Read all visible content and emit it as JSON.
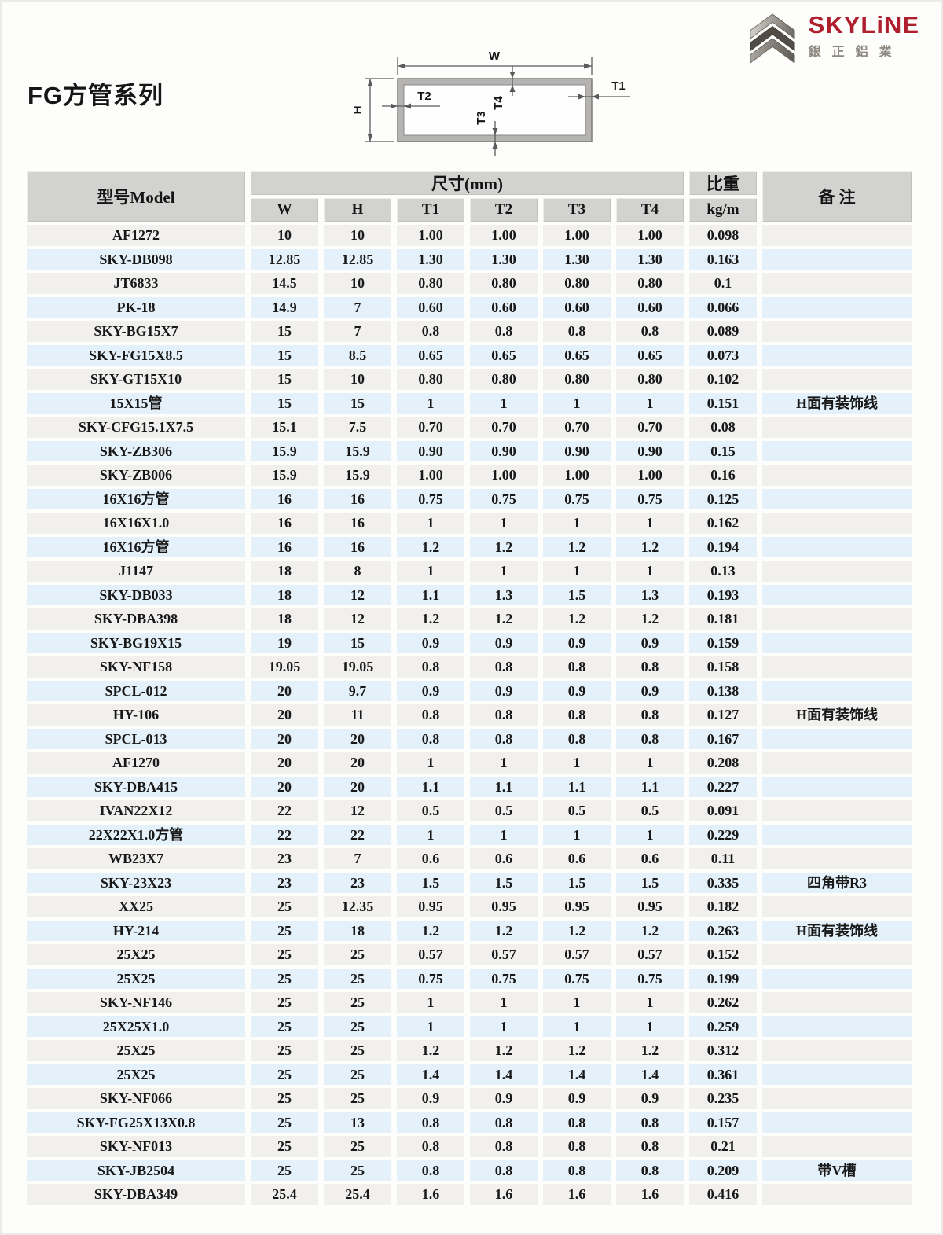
{
  "page": {
    "title": "FG方管系列"
  },
  "logo": {
    "brand": "SKYLiNE",
    "brand_cn": "銀正鋁業",
    "brand_color": "#b01f2e"
  },
  "colors": {
    "header_bg": "#d2d2d0",
    "row_odd_bg": "#f1f0ee",
    "row_even_bg": "#e4f1fa",
    "brand_red": "#b01f2e"
  },
  "diagram": {
    "w": "W",
    "h": "H",
    "t1": "T1",
    "t2": "T2",
    "t3": "T3",
    "t4": "T4"
  },
  "table": {
    "header": {
      "model": "型号Model",
      "size_group": "尺寸(mm)",
      "weight": "比重",
      "weight_unit": "kg/m",
      "note": "备 注",
      "dims": [
        "W",
        "H",
        "T1",
        "T2",
        "T3",
        "T4"
      ]
    },
    "columns": [
      "model",
      "w",
      "h",
      "t1",
      "t2",
      "t3",
      "t4",
      "kg-per-m",
      "note"
    ],
    "rows": [
      [
        "AF1272",
        "10",
        "10",
        "1.00",
        "1.00",
        "1.00",
        "1.00",
        "0.098",
        ""
      ],
      [
        "SKY-DB098",
        "12.85",
        "12.85",
        "1.30",
        "1.30",
        "1.30",
        "1.30",
        "0.163",
        ""
      ],
      [
        "JT6833",
        "14.5",
        "10",
        "0.80",
        "0.80",
        "0.80",
        "0.80",
        "0.1",
        ""
      ],
      [
        "PK-18",
        "14.9",
        "7",
        "0.60",
        "0.60",
        "0.60",
        "0.60",
        "0.066",
        ""
      ],
      [
        "SKY-BG15X7",
        "15",
        "7",
        "0.8",
        "0.8",
        "0.8",
        "0.8",
        "0.089",
        ""
      ],
      [
        "SKY-FG15X8.5",
        "15",
        "8.5",
        "0.65",
        "0.65",
        "0.65",
        "0.65",
        "0.073",
        ""
      ],
      [
        "SKY-GT15X10",
        "15",
        "10",
        "0.80",
        "0.80",
        "0.80",
        "0.80",
        "0.102",
        ""
      ],
      [
        "15X15管",
        "15",
        "15",
        "1",
        "1",
        "1",
        "1",
        "0.151",
        "H面有装饰线"
      ],
      [
        "SKY-CFG15.1X7.5",
        "15.1",
        "7.5",
        "0.70",
        "0.70",
        "0.70",
        "0.70",
        "0.08",
        ""
      ],
      [
        "SKY-ZB306",
        "15.9",
        "15.9",
        "0.90",
        "0.90",
        "0.90",
        "0.90",
        "0.15",
        ""
      ],
      [
        "SKY-ZB006",
        "15.9",
        "15.9",
        "1.00",
        "1.00",
        "1.00",
        "1.00",
        "0.16",
        ""
      ],
      [
        "16X16方管",
        "16",
        "16",
        "0.75",
        "0.75",
        "0.75",
        "0.75",
        "0.125",
        ""
      ],
      [
        "16X16X1.0",
        "16",
        "16",
        "1",
        "1",
        "1",
        "1",
        "0.162",
        ""
      ],
      [
        "16X16方管",
        "16",
        "16",
        "1.2",
        "1.2",
        "1.2",
        "1.2",
        "0.194",
        ""
      ],
      [
        "J1147",
        "18",
        "8",
        "1",
        "1",
        "1",
        "1",
        "0.13",
        ""
      ],
      [
        "SKY-DB033",
        "18",
        "12",
        "1.1",
        "1.3",
        "1.5",
        "1.3",
        "0.193",
        ""
      ],
      [
        "SKY-DBA398",
        "18",
        "12",
        "1.2",
        "1.2",
        "1.2",
        "1.2",
        "0.181",
        ""
      ],
      [
        "SKY-BG19X15",
        "19",
        "15",
        "0.9",
        "0.9",
        "0.9",
        "0.9",
        "0.159",
        ""
      ],
      [
        "SKY-NF158",
        "19.05",
        "19.05",
        "0.8",
        "0.8",
        "0.8",
        "0.8",
        "0.158",
        ""
      ],
      [
        "SPCL-012",
        "20",
        "9.7",
        "0.9",
        "0.9",
        "0.9",
        "0.9",
        "0.138",
        ""
      ],
      [
        "HY-106",
        "20",
        "11",
        "0.8",
        "0.8",
        "0.8",
        "0.8",
        "0.127",
        "H面有装饰线"
      ],
      [
        "SPCL-013",
        "20",
        "20",
        "0.8",
        "0.8",
        "0.8",
        "0.8",
        "0.167",
        ""
      ],
      [
        "AF1270",
        "20",
        "20",
        "1",
        "1",
        "1",
        "1",
        "0.208",
        ""
      ],
      [
        "SKY-DBA415",
        "20",
        "20",
        "1.1",
        "1.1",
        "1.1",
        "1.1",
        "0.227",
        ""
      ],
      [
        "IVAN22X12",
        "22",
        "12",
        "0.5",
        "0.5",
        "0.5",
        "0.5",
        "0.091",
        ""
      ],
      [
        "22X22X1.0方管",
        "22",
        "22",
        "1",
        "1",
        "1",
        "1",
        "0.229",
        ""
      ],
      [
        "WB23X7",
        "23",
        "7",
        "0.6",
        "0.6",
        "0.6",
        "0.6",
        "0.11",
        ""
      ],
      [
        "SKY-23X23",
        "23",
        "23",
        "1.5",
        "1.5",
        "1.5",
        "1.5",
        "0.335",
        "四角带R3"
      ],
      [
        "XX25",
        "25",
        "12.35",
        "0.95",
        "0.95",
        "0.95",
        "0.95",
        "0.182",
        ""
      ],
      [
        "HY-214",
        "25",
        "18",
        "1.2",
        "1.2",
        "1.2",
        "1.2",
        "0.263",
        "H面有装饰线"
      ],
      [
        "25X25",
        "25",
        "25",
        "0.57",
        "0.57",
        "0.57",
        "0.57",
        "0.152",
        ""
      ],
      [
        "25X25",
        "25",
        "25",
        "0.75",
        "0.75",
        "0.75",
        "0.75",
        "0.199",
        ""
      ],
      [
        "SKY-NF146",
        "25",
        "25",
        "1",
        "1",
        "1",
        "1",
        "0.262",
        ""
      ],
      [
        "25X25X1.0",
        "25",
        "25",
        "1",
        "1",
        "1",
        "1",
        "0.259",
        ""
      ],
      [
        "25X25",
        "25",
        "25",
        "1.2",
        "1.2",
        "1.2",
        "1.2",
        "0.312",
        ""
      ],
      [
        "25X25",
        "25",
        "25",
        "1.4",
        "1.4",
        "1.4",
        "1.4",
        "0.361",
        ""
      ],
      [
        "SKY-NF066",
        "25",
        "25",
        "0.9",
        "0.9",
        "0.9",
        "0.9",
        "0.235",
        ""
      ],
      [
        "SKY-FG25X13X0.8",
        "25",
        "13",
        "0.8",
        "0.8",
        "0.8",
        "0.8",
        "0.157",
        ""
      ],
      [
        "SKY-NF013",
        "25",
        "25",
        "0.8",
        "0.8",
        "0.8",
        "0.8",
        "0.21",
        ""
      ],
      [
        "SKY-JB2504",
        "25",
        "25",
        "0.8",
        "0.8",
        "0.8",
        "0.8",
        "0.209",
        "带V槽"
      ],
      [
        "SKY-DBA349",
        "25.4",
        "25.4",
        "1.6",
        "1.6",
        "1.6",
        "1.6",
        "0.416",
        ""
      ]
    ]
  }
}
